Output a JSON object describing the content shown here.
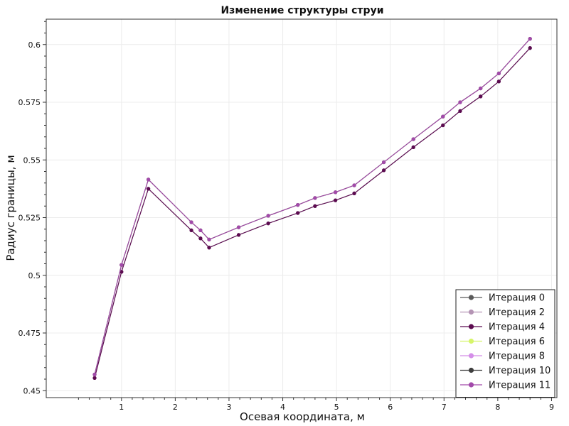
{
  "chart_data": {
    "type": "line",
    "title": "Изменение структуры струи",
    "xlabel": "Осевая координата, м",
    "ylabel": "Радиус границы, м",
    "xlim": [
      -0.4,
      9.1
    ],
    "ylim": [
      0.447,
      0.611
    ],
    "x_ticks": [
      1,
      2,
      3,
      4,
      5,
      6,
      7,
      8,
      9
    ],
    "y_ticks": [
      0.45,
      0.475,
      0.5,
      0.525,
      0.55,
      0.575,
      0.6
    ],
    "x_tick_labels": [
      "1",
      "2",
      "3",
      "4",
      "5",
      "6",
      "7",
      "8",
      "9"
    ],
    "y_tick_labels": [
      "0.45",
      "0.475",
      "0.5",
      "0.525",
      "0.55",
      "0.575",
      "0.6"
    ],
    "grid": true,
    "legend_position": "bottom-right",
    "x": [
      0.5,
      1.0,
      1.5,
      2.3,
      2.47,
      2.63,
      3.18,
      3.73,
      4.28,
      4.6,
      4.98,
      5.33,
      5.88,
      6.43,
      6.98,
      7.3,
      7.68,
      8.02,
      8.6
    ],
    "series": [
      {
        "name": "Итерация 0",
        "color": "#5a5a5a",
        "values": [
          0.4555,
          0.5015,
          0.5375,
          0.5195,
          0.516,
          0.512,
          0.5175,
          0.5225,
          0.527,
          0.53,
          0.5325,
          0.5355,
          0.5455,
          0.5555,
          0.565,
          0.5712,
          0.5775,
          0.584,
          0.5985
        ]
      },
      {
        "name": "Итерация 2",
        "color": "#b494b4",
        "values": [
          0.4555,
          0.5015,
          0.5375,
          0.5195,
          0.516,
          0.512,
          0.5175,
          0.5225,
          0.527,
          0.53,
          0.5325,
          0.5355,
          0.5455,
          0.5555,
          0.565,
          0.5712,
          0.5775,
          0.584,
          0.5985
        ]
      },
      {
        "name": "Итерация 4",
        "color": "#5c0b50",
        "values": [
          0.4555,
          0.5015,
          0.5375,
          0.5195,
          0.516,
          0.512,
          0.5175,
          0.5225,
          0.527,
          0.53,
          0.5325,
          0.5355,
          0.5455,
          0.5555,
          0.565,
          0.5712,
          0.5775,
          0.584,
          0.5985
        ]
      },
      {
        "name": "Итерация 6",
        "color": "#d6f56a",
        "values": [
          0.457,
          0.5045,
          0.5415,
          0.523,
          0.5195,
          0.5155,
          0.5208,
          0.5258,
          0.5305,
          0.5335,
          0.536,
          0.539,
          0.549,
          0.559,
          0.5688,
          0.575,
          0.581,
          0.5875,
          0.6025
        ]
      },
      {
        "name": "Итерация 8",
        "color": "#d48ee8",
        "values": [
          0.457,
          0.5045,
          0.5415,
          0.523,
          0.5195,
          0.5155,
          0.5208,
          0.5258,
          0.5305,
          0.5335,
          0.536,
          0.539,
          0.549,
          0.559,
          0.5688,
          0.575,
          0.581,
          0.5875,
          0.6025
        ]
      },
      {
        "name": "Итерация 10",
        "color": "#3e3e3e",
        "values": [
          0.457,
          0.5045,
          0.5415,
          0.523,
          0.5195,
          0.5155,
          0.5208,
          0.5258,
          0.5305,
          0.5335,
          0.536,
          0.539,
          0.549,
          0.559,
          0.5688,
          0.575,
          0.581,
          0.5875,
          0.6025
        ]
      },
      {
        "name": "Итерация 11",
        "color": "#a24aaa",
        "values": [
          0.457,
          0.5045,
          0.5415,
          0.523,
          0.5195,
          0.5155,
          0.5208,
          0.5258,
          0.5305,
          0.5335,
          0.536,
          0.539,
          0.549,
          0.559,
          0.5688,
          0.575,
          0.581,
          0.5875,
          0.6025
        ]
      }
    ]
  }
}
